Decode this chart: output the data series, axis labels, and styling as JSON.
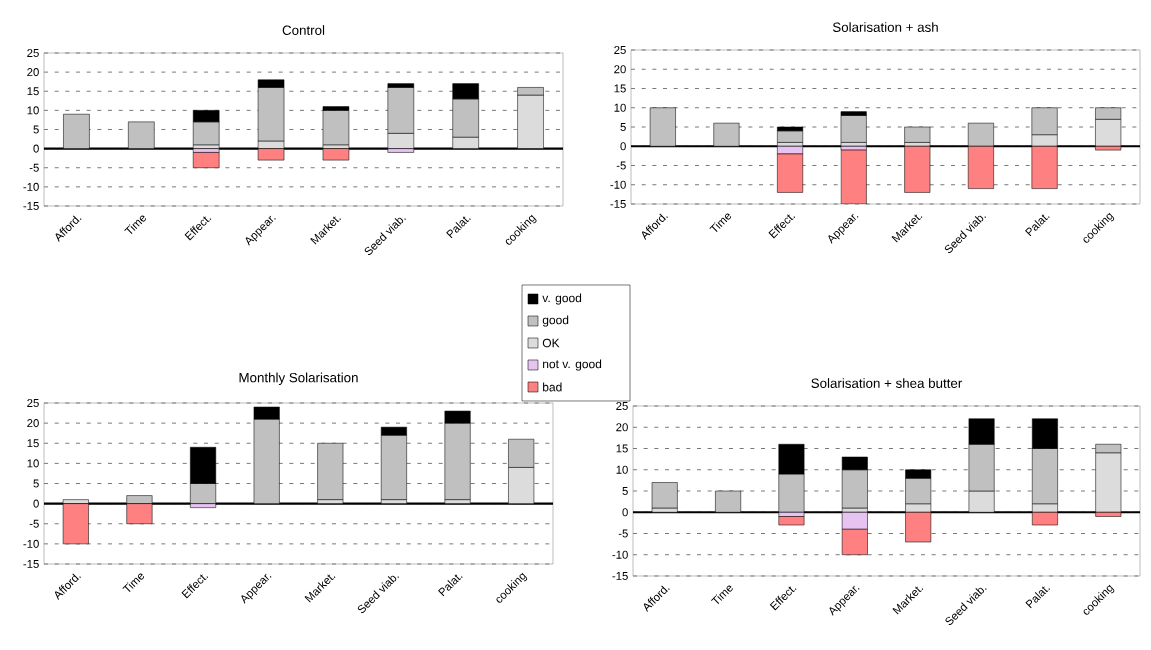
{
  "chart_data": [
    {
      "type": "bar",
      "title": "Control",
      "stacked": true,
      "grid": "y",
      "legend": "right",
      "categories": [
        "Afford.",
        "Time",
        "Effect.",
        "Appear.",
        "Market.",
        "Seed viab.",
        "Palat.",
        "cooking"
      ],
      "ylim": [
        -15,
        25
      ],
      "yticks": [
        -15,
        -10,
        -5,
        0,
        5,
        10,
        15,
        20,
        25
      ],
      "series": [
        {
          "name": "OK",
          "color": "#dcdcdc",
          "values": [
            0,
            0,
            1,
            2,
            1,
            4,
            3,
            14
          ]
        },
        {
          "name": "good",
          "color": "#c0c0c0",
          "values": [
            9,
            7,
            6,
            14,
            9,
            12,
            10,
            2
          ]
        },
        {
          "name": "v. good",
          "color": "#000000",
          "values": [
            0,
            0,
            3,
            2,
            1,
            1,
            4,
            0
          ]
        },
        {
          "name": "not v. good",
          "color": "#e6c3f0",
          "values": [
            0,
            0,
            -1,
            0,
            0,
            -1,
            0,
            0
          ]
        },
        {
          "name": "bad",
          "color": "#ff8080",
          "values": [
            0,
            0,
            -4,
            -3,
            -3,
            0,
            0,
            0
          ]
        }
      ]
    },
    {
      "type": "bar",
      "title": "Solarisation + ash",
      "stacked": true,
      "grid": "y",
      "categories": [
        "Afford.",
        "Time",
        "Effect.",
        "Appear.",
        "Market.",
        "Seed viab.",
        "Palat.",
        "cooking"
      ],
      "ylim": [
        -15,
        25
      ],
      "yticks": [
        -15,
        -10,
        -5,
        0,
        5,
        10,
        15,
        20,
        25
      ],
      "series": [
        {
          "color": "#dcdcdc",
          "values": [
            0,
            0,
            1,
            1,
            1,
            0,
            3,
            7
          ]
        },
        {
          "color": "#c0c0c0",
          "values": [
            10,
            6,
            3,
            7,
            4,
            6,
            7,
            3
          ]
        },
        {
          "color": "#000000",
          "values": [
            0,
            0,
            1,
            1,
            0,
            0,
            0,
            0
          ]
        },
        {
          "color": "#e6c3f0",
          "values": [
            0,
            0,
            -2,
            -1,
            0,
            0,
            0,
            0
          ]
        },
        {
          "color": "#ff8080",
          "values": [
            0,
            0,
            -10,
            -14,
            -12,
            -11,
            -11,
            -1
          ]
        }
      ]
    },
    {
      "type": "bar",
      "title": "Monthly Solarisation",
      "stacked": true,
      "grid": "y",
      "categories": [
        "Afford.",
        "Time",
        "Effect.",
        "Appear.",
        "Market.",
        "Seed viab.",
        "Palat.",
        "cooking"
      ],
      "ylim": [
        -15,
        25
      ],
      "yticks": [
        -15,
        -10,
        -5,
        0,
        5,
        10,
        15,
        20,
        25
      ],
      "series": [
        {
          "color": "#dcdcdc",
          "values": [
            1,
            0,
            0,
            0,
            1,
            1,
            1,
            9
          ]
        },
        {
          "color": "#c0c0c0",
          "values": [
            0,
            2,
            5,
            21,
            14,
            16,
            19,
            7
          ]
        },
        {
          "color": "#000000",
          "values": [
            0,
            0,
            9,
            3,
            0,
            2,
            3,
            0
          ]
        },
        {
          "color": "#e6c3f0",
          "values": [
            0,
            0,
            -1,
            0,
            0,
            0,
            0,
            0
          ]
        },
        {
          "color": "#ff8080",
          "values": [
            -10,
            -5,
            0,
            0,
            0,
            0,
            0,
            0
          ]
        }
      ]
    },
    {
      "type": "bar",
      "title": "Solarisation + shea butter",
      "stacked": true,
      "grid": "y",
      "categories": [
        "Afford.",
        "Time",
        "Effect.",
        "Appear.",
        "Market.",
        "Seed viab.",
        "Palat.",
        "cooking"
      ],
      "ylim": [
        -15,
        25
      ],
      "yticks": [
        -15,
        -10,
        -5,
        0,
        5,
        10,
        15,
        20,
        25
      ],
      "series": [
        {
          "color": "#dcdcdc",
          "values": [
            1,
            0,
            0,
            1,
            2,
            5,
            2,
            14
          ]
        },
        {
          "color": "#c0c0c0",
          "values": [
            6,
            5,
            9,
            9,
            6,
            11,
            13,
            2
          ]
        },
        {
          "color": "#000000",
          "values": [
            0,
            0,
            7,
            3,
            2,
            6,
            7,
            0
          ]
        },
        {
          "color": "#e6c3f0",
          "values": [
            0,
            0,
            -1,
            -4,
            0,
            0,
            0,
            0
          ]
        },
        {
          "color": "#ff8080",
          "values": [
            0,
            0,
            -2,
            -6,
            -7,
            0,
            -3,
            -1
          ]
        }
      ]
    }
  ]
}
